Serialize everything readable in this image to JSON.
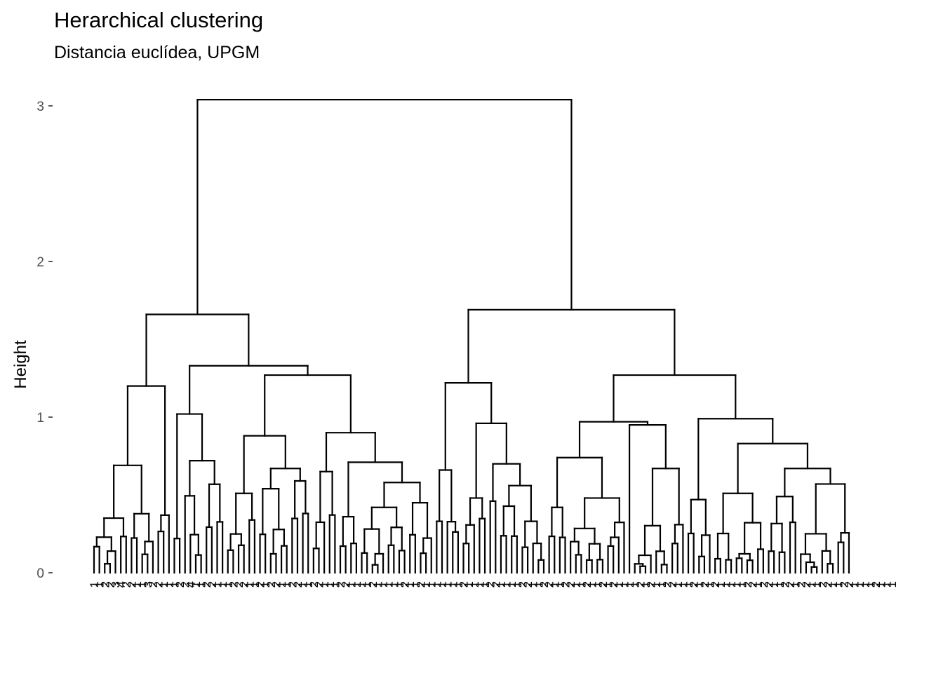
{
  "chart_data": {
    "type": "dendrogram",
    "title": "Herarchical clustering",
    "subtitle": "Distancia euclídea, UPGM",
    "xlabel": "",
    "ylabel": "Height",
    "ylim": [
      0,
      3.05
    ],
    "yticks": [
      0,
      1,
      2,
      3
    ],
    "grid": false,
    "n_leaves": 150,
    "leaf_labels": [
      "1",
      "1",
      "2",
      "2",
      "3",
      "4",
      "2",
      "2",
      "1",
      "1",
      "3",
      "2",
      "2",
      "1",
      "1",
      "1",
      "2",
      "2",
      "4",
      "1",
      "1",
      "2",
      "2",
      "1",
      "1",
      "1",
      "2",
      "2",
      "2",
      "1",
      "1",
      "2",
      "1",
      "2",
      "2",
      "1",
      "1",
      "2",
      "2",
      "1",
      "1",
      "2",
      "2",
      "1",
      "1",
      "1",
      "2",
      "2",
      "1",
      "1",
      "1",
      "1",
      "2",
      "1",
      "1",
      "1",
      "1",
      "1",
      "2",
      "1",
      "1",
      "2",
      "1",
      "1",
      "1",
      "1",
      "1",
      "1",
      "1",
      "2",
      "1",
      "1",
      "1",
      "1",
      "2",
      "2",
      "1",
      "1",
      "1",
      "1",
      "2",
      "2",
      "1",
      "1",
      "2",
      "2",
      "1",
      "1",
      "2",
      "2",
      "1",
      "1",
      "2",
      "1",
      "1",
      "2",
      "1",
      "2",
      "1",
      "1",
      "1",
      "1",
      "2",
      "1",
      "2",
      "1",
      "1",
      "2",
      "2",
      "1",
      "1",
      "1",
      "2",
      "1",
      "2",
      "1",
      "2",
      "1",
      "1",
      "1",
      "1",
      "1",
      "2",
      "2",
      "1",
      "2",
      "2",
      "1",
      "1",
      "2",
      "2",
      "1",
      "2",
      "2",
      "1",
      "1",
      "2",
      "2",
      "1",
      "1",
      "2",
      "2",
      "1",
      "1",
      "1",
      "1",
      "2",
      "1",
      "1",
      "1"
    ],
    "merge_heights": {
      "root": 3.04,
      "left_main": 1.66,
      "right_main": 1.69,
      "left_sub": 1.2,
      "left_mid": 1.33,
      "right_sub_a": 1.22,
      "right_sub_b": 1.27,
      "left_mid_a": 1.02,
      "left_mid_b": 1.27,
      "right_mid_a": 0.96,
      "right_mid_b": 0.97,
      "right_mid_c": 0.99,
      "right_mid_d": 0.83
    }
  }
}
